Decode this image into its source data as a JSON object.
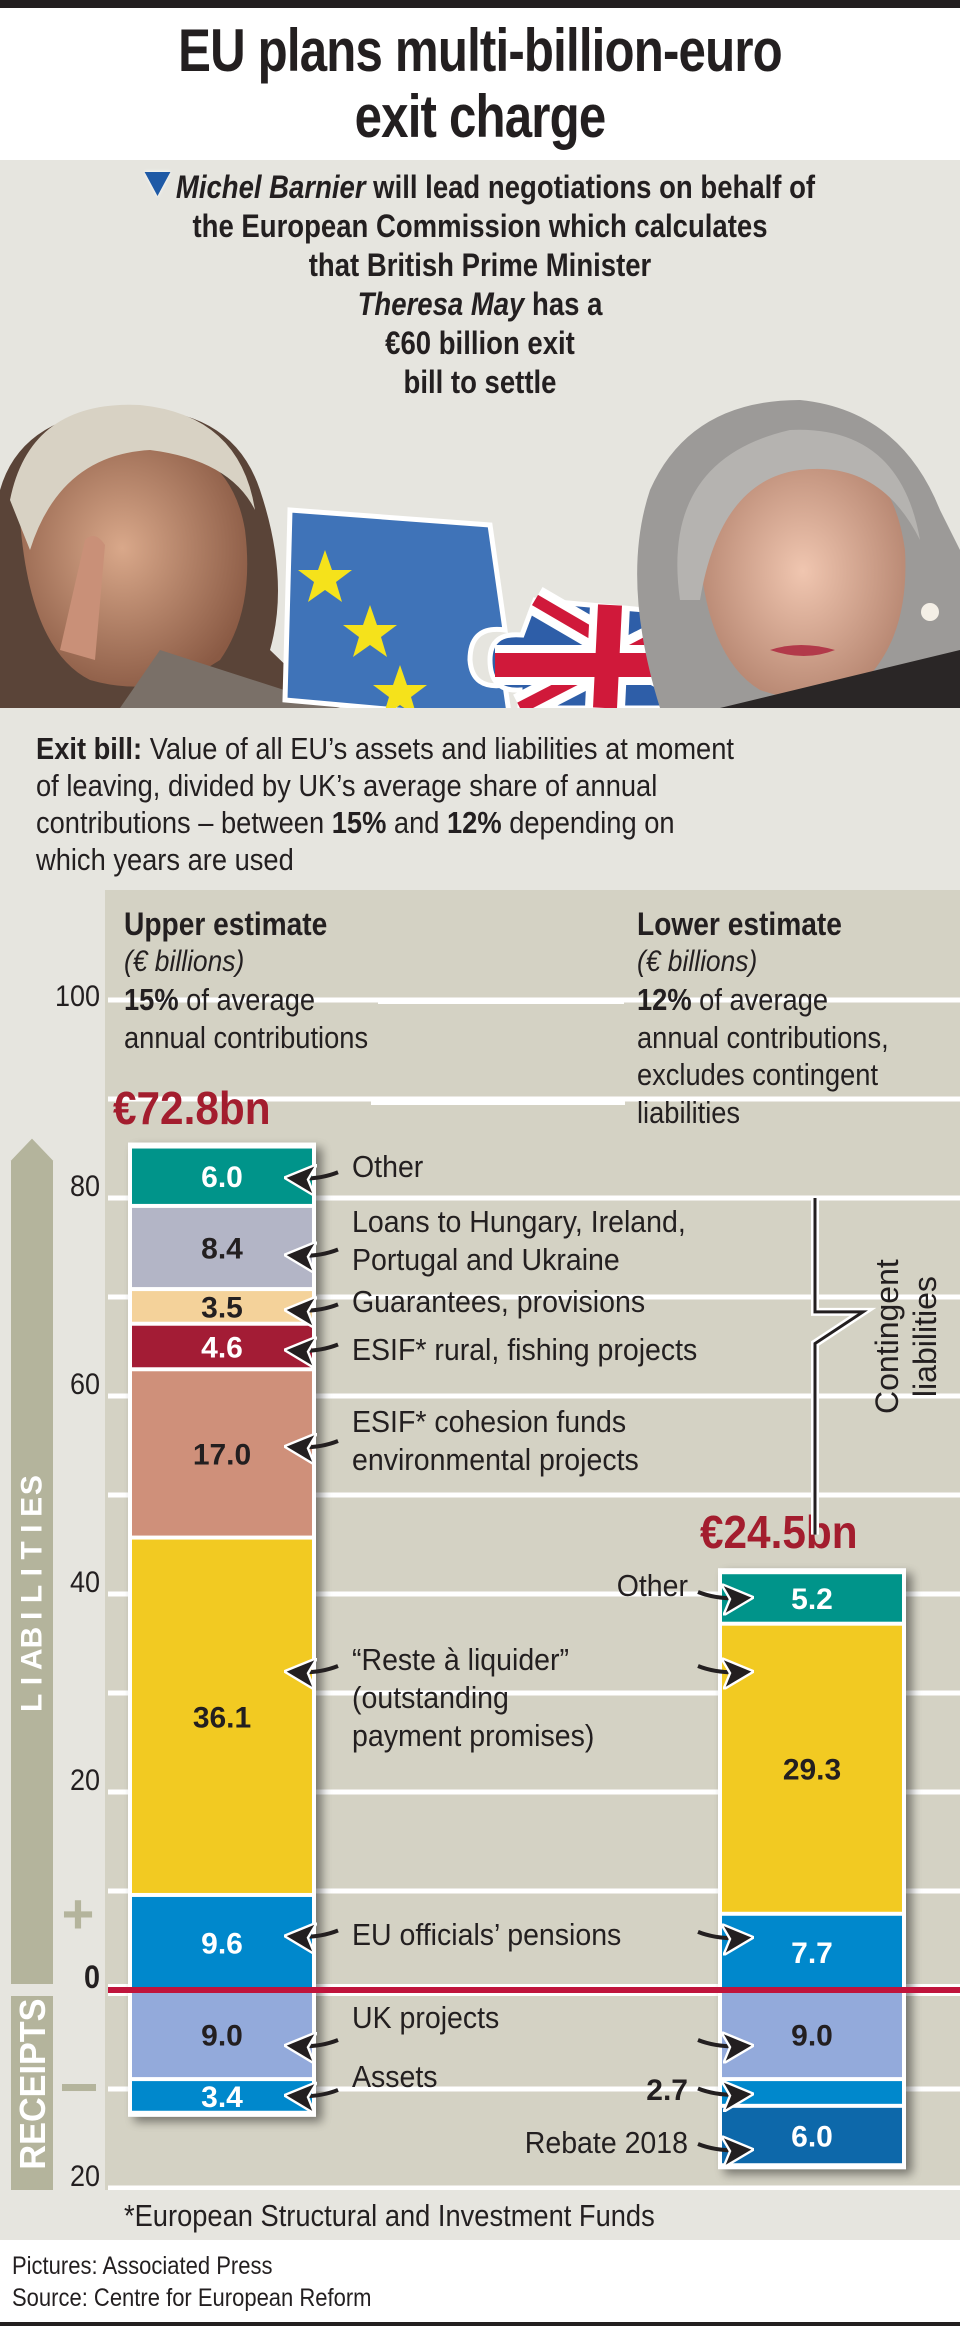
{
  "header": {
    "title_line1": "EU plans multi-billion-euro",
    "title_line2": "exit charge"
  },
  "intro": {
    "icon": "down-triangle-icon",
    "lines": [
      [
        {
          "t": "Michel Barnier",
          "i": true
        },
        {
          "t": " will lead negotiations on behalf of",
          "i": false
        }
      ],
      [
        {
          "t": "the European Commission which calculates",
          "i": false
        }
      ],
      [
        {
          "t": "that British Prime Minister",
          "i": false
        }
      ],
      [
        {
          "t": "Theresa May",
          "i": true
        },
        {
          "t": " has a",
          "i": false
        }
      ],
      [
        {
          "t": "€60 billion exit",
          "i": false
        }
      ],
      [
        {
          "t": "bill to settle",
          "i": false
        }
      ]
    ]
  },
  "photos": {
    "left_person": "Michel Barnier",
    "right_person": "Theresa May",
    "puzzle_left": "EU flag puzzle piece",
    "puzzle_right": "Union Jack puzzle piece"
  },
  "exit_bill": {
    "label": "Exit bill:",
    "line1": " Value of all EU’s assets and liabilities at moment",
    "line2": "of leaving, divided by UK’s average share of annual",
    "line3_a": "contributions – between ",
    "pct1": "15%",
    "line3_b": " and ",
    "pct2": "12%",
    "line3_c": " depending on",
    "line4": "which years are used"
  },
  "chart_data": {
    "type": "bar",
    "stacked": true,
    "units": "€ billions",
    "ylim": [
      -20,
      100
    ],
    "yticks": [
      100,
      80,
      60,
      40,
      20,
      0,
      20
    ],
    "ytick_values": [
      100,
      80,
      60,
      40,
      20,
      0,
      -20
    ],
    "ytick_labels": [
      "100",
      "80",
      "60",
      "40",
      "20",
      "0",
      "20"
    ],
    "gridlines_every": 10,
    "axis_label_positive": "LIABILITIES",
    "axis_label_negative": "RECEIPTS",
    "plus_sign": "+",
    "minus_sign": "–",
    "upper": {
      "title": "Upper estimate",
      "subtitle": "(€ billions)",
      "desc_bold": "15%",
      "desc_line1": " of average",
      "desc_line2": "annual contributions",
      "total_label": "€72.8bn",
      "total": 72.8,
      "segments": [
        {
          "name": "EU officials’ pensions",
          "value": 9.6,
          "color": "#0088cc",
          "text_color": "#ffffff"
        },
        {
          "name": "“Reste à liquider” (outstanding payment promises)",
          "value": 36.1,
          "color": "#f2ca22",
          "text_color": "#231f20"
        },
        {
          "name": "ESIF* cohesion funds environmental projects",
          "value": 17.0,
          "color": "#cf907a",
          "text_color": "#231f20"
        },
        {
          "name": "ESIF* rural, fishing projects",
          "value": 4.6,
          "color": "#a31d35",
          "text_color": "#ffffff"
        },
        {
          "name": "Guarantees, provisions",
          "value": 3.5,
          "color": "#f4d29a",
          "text_color": "#231f20"
        },
        {
          "name": "Loans to Hungary, Ireland, Portugal and Ukraine",
          "value": 8.4,
          "color": "#b3b5c6",
          "text_color": "#231f20"
        },
        {
          "name": "Other",
          "value": 6.0,
          "color": "#00948a",
          "text_color": "#ffffff"
        }
      ],
      "receipts": [
        {
          "name": "UK projects",
          "value": -9.0,
          "color": "#93aadb",
          "text_color": "#231f20"
        },
        {
          "name": "Assets",
          "value": -3.4,
          "color": "#0088cc",
          "text_color": "#ffffff"
        }
      ]
    },
    "lower": {
      "title": "Lower estimate",
      "subtitle": "(€ billions)",
      "desc_bold": "12%",
      "desc_line1": " of average",
      "desc_line2": "annual contributions,",
      "desc_line3": "excludes contingent",
      "desc_line4": "liabilities",
      "total_label": "€24.5bn",
      "total": 24.5,
      "segments": [
        {
          "name": "EU officials’ pensions",
          "value": 7.7,
          "color": "#0088cc",
          "text_color": "#ffffff"
        },
        {
          "name": "“Reste à liquider” (outstanding payment promises)",
          "value": 29.3,
          "color": "#f2ca22",
          "text_color": "#231f20"
        },
        {
          "name": "Other",
          "value": 5.2,
          "color": "#00948a",
          "text_color": "#ffffff"
        }
      ],
      "receipts": [
        {
          "name": "UK projects",
          "value": -9.0,
          "color": "#93aadb",
          "text_color": "#231f20"
        },
        {
          "name": "Assets",
          "value": -2.7,
          "color": "#0088cc",
          "text_color": "#231f20",
          "label_outside": true
        },
        {
          "name": "Rebate 2018",
          "value": -6.0,
          "color": "#0a68aa",
          "text_color": "#ffffff"
        }
      ]
    },
    "labels": {
      "other_left": "Other",
      "loans_1": "Loans to Hungary, Ireland,",
      "loans_2": "Portugal and Ukraine",
      "guarantees": "Guarantees, provisions",
      "esif_rural": "ESIF* rural, fishing projects",
      "esif_cohesion_1": "ESIF* cohesion funds",
      "esif_cohesion_2": "environmental projects",
      "other_right": "Other",
      "reste_1": "“Reste à liquider”",
      "reste_2": "(outstanding",
      "reste_3": "payment promises)",
      "pensions": "EU officials’ pensions",
      "uk_projects": "UK projects",
      "assets": "Assets",
      "rebate": "Rebate 2018",
      "contingent_1": "Contingent",
      "contingent_2": "liabilities"
    },
    "colors": {
      "zero_line": "#c0143c",
      "total_label": "#a31d2e",
      "panel": "#d4d2c4",
      "axis_arrow": "#b4b49c"
    }
  },
  "footnote": "*European Structural and Investment Funds",
  "credits": {
    "pictures": "Pictures: Associated Press",
    "source": "Source: Centre for European Reform"
  }
}
